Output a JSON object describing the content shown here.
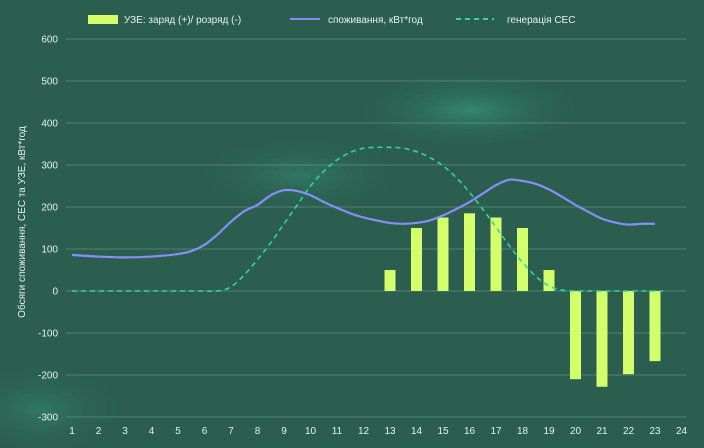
{
  "colors": {
    "bar": "#d4ff6b",
    "consumption": "#8a8df5",
    "generation": "#2fd7a0",
    "grid": "#8fb5a8",
    "text": "#e8f1ec"
  },
  "chart_data": {
    "type": "bar",
    "ylabel": "Обсяги споживання, СЕС та УЗЕ, кВт*год",
    "xlabel": "",
    "ylim": [
      -300,
      600
    ],
    "yticks": [
      600,
      500,
      400,
      300,
      200,
      100,
      0,
      -100,
      -200,
      -300
    ],
    "xticks": [
      1,
      2,
      3,
      4,
      5,
      6,
      7,
      8,
      9,
      10,
      11,
      12,
      13,
      14,
      15,
      16,
      17,
      18,
      19,
      20,
      21,
      22,
      23,
      24
    ],
    "grid": "horizontal",
    "legend_position": "top",
    "legend": [
      "УЗЕ: заряд (+)/ розряд (-)",
      "споживання, кВт*год",
      "генерація СЕС"
    ],
    "series": [
      {
        "name": "УЗЕ: заряд (+)/ розряд (-)",
        "kind": "bar",
        "x": [
          1,
          2,
          3,
          4,
          5,
          6,
          7,
          8,
          9,
          10,
          11,
          12,
          13,
          14,
          15,
          16,
          17,
          18,
          19,
          20,
          21,
          22,
          23
        ],
        "values": [
          0,
          0,
          0,
          0,
          0,
          0,
          0,
          0,
          0,
          0,
          0,
          0,
          50,
          150,
          175,
          185,
          175,
          150,
          50,
          -210,
          -228,
          -198,
          -167
        ]
      },
      {
        "name": "споживання, кВт*год",
        "kind": "line",
        "x": [
          1,
          2,
          3,
          4,
          5,
          5.5,
          6,
          6.5,
          7,
          7.5,
          8,
          8.5,
          9,
          9.5,
          10,
          10.5,
          11,
          11.5,
          12,
          12.5,
          13,
          13.5,
          14,
          14.5,
          15,
          15.5,
          16,
          16.5,
          17,
          17.5,
          18,
          18.5,
          19,
          19.5,
          20,
          20.5,
          21,
          21.5,
          22,
          22.5,
          23
        ],
        "values": [
          86,
          82,
          80,
          82,
          88,
          95,
          110,
          135,
          165,
          190,
          205,
          228,
          240,
          238,
          228,
          212,
          198,
          185,
          175,
          168,
          162,
          160,
          162,
          168,
          180,
          195,
          212,
          232,
          252,
          265,
          262,
          255,
          242,
          224,
          205,
          188,
          172,
          163,
          158,
          160,
          160
        ]
      },
      {
        "name": "генерація СЕС",
        "kind": "line",
        "x": [
          1,
          2,
          3,
          4,
          5,
          6,
          6.5,
          7,
          7.5,
          8,
          8.5,
          9,
          9.5,
          10,
          10.5,
          11,
          11.5,
          12,
          12.5,
          13,
          13.5,
          14,
          14.5,
          15,
          15.5,
          16,
          16.5,
          17,
          17.5,
          18,
          18.5,
          19,
          19.5,
          20,
          20.5,
          21,
          22,
          23,
          23.3
        ],
        "values": [
          0,
          0,
          0,
          0,
          0,
          0,
          0,
          10,
          38,
          75,
          115,
          160,
          205,
          250,
          285,
          312,
          330,
          340,
          342,
          342,
          340,
          332,
          318,
          298,
          270,
          235,
          195,
          152,
          108,
          68,
          35,
          12,
          2,
          0,
          0,
          0,
          0,
          0,
          0
        ]
      }
    ]
  }
}
